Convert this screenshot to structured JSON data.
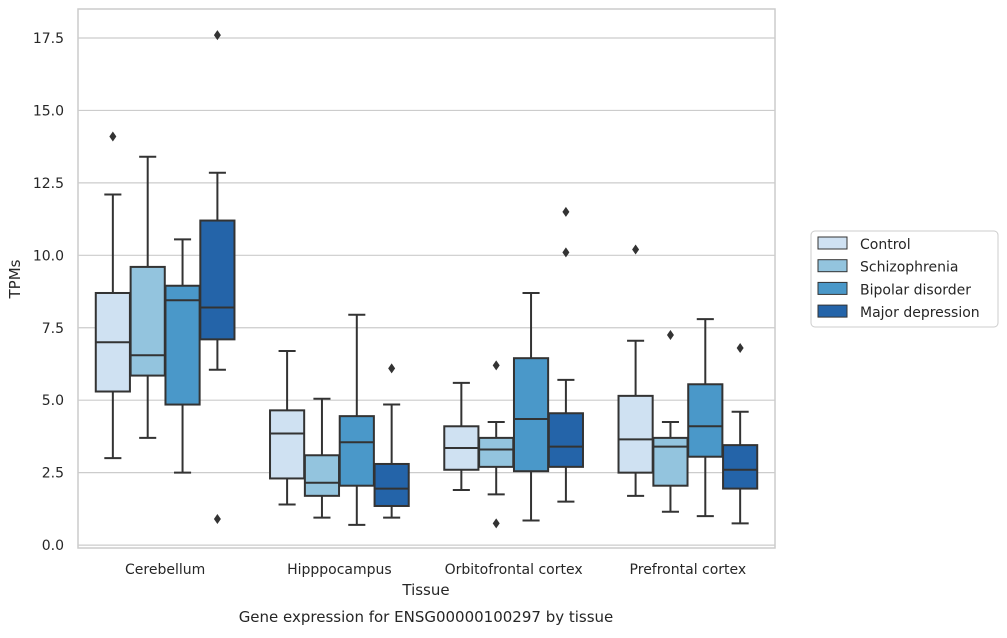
{
  "chart_data": {
    "type": "boxplot",
    "title": "",
    "caption": "Gene expression for ENSG00000100297 by tissue",
    "xlabel": "Tissue",
    "ylabel": "TPMs",
    "ylim": [
      -0.1,
      18.5
    ],
    "yticks": [
      0.0,
      2.5,
      5.0,
      7.5,
      10.0,
      12.5,
      15.0,
      17.5
    ],
    "ytick_labels": [
      "0.0",
      "2.5",
      "5.0",
      "7.5",
      "10.0",
      "12.5",
      "15.0",
      "17.5"
    ],
    "grid": "horizontal",
    "legend_position": "right",
    "categories": [
      "Cerebellum",
      "Hipppocampus",
      "Orbitofrontal cortex",
      "Prefrontal cortex"
    ],
    "series": [
      {
        "name": "Control",
        "color": "#cfe1f2",
        "boxes": [
          {
            "whisker_low": 3.0,
            "q1": 5.3,
            "median": 7.0,
            "q3": 8.7,
            "whisker_high": 12.1,
            "outliers": [
              14.1
            ]
          },
          {
            "whisker_low": 1.4,
            "q1": 2.3,
            "median": 3.85,
            "q3": 4.65,
            "whisker_high": 6.7,
            "outliers": []
          },
          {
            "whisker_low": 1.9,
            "q1": 2.6,
            "median": 3.35,
            "q3": 4.1,
            "whisker_high": 5.6,
            "outliers": []
          },
          {
            "whisker_low": 1.7,
            "q1": 2.5,
            "median": 3.65,
            "q3": 5.15,
            "whisker_high": 7.05,
            "outliers": [
              10.2
            ]
          }
        ]
      },
      {
        "name": "Schizophrenia",
        "color": "#93c4de",
        "boxes": [
          {
            "whisker_low": 3.7,
            "q1": 5.85,
            "median": 6.55,
            "q3": 9.6,
            "whisker_high": 13.4,
            "outliers": []
          },
          {
            "whisker_low": 0.95,
            "q1": 1.7,
            "median": 2.15,
            "q3": 3.1,
            "whisker_high": 5.05,
            "outliers": []
          },
          {
            "whisker_low": 1.75,
            "q1": 2.7,
            "median": 3.3,
            "q3": 3.7,
            "whisker_high": 4.25,
            "outliers": [
              0.75,
              6.2
            ]
          },
          {
            "whisker_low": 1.15,
            "q1": 2.05,
            "median": 3.4,
            "q3": 3.7,
            "whisker_high": 4.25,
            "outliers": [
              7.25
            ]
          }
        ]
      },
      {
        "name": "Bipolar disorder",
        "color": "#4a98c9",
        "boxes": [
          {
            "whisker_low": 2.5,
            "q1": 4.85,
            "median": 8.45,
            "q3": 8.95,
            "whisker_high": 10.55,
            "outliers": []
          },
          {
            "whisker_low": 0.7,
            "q1": 2.05,
            "median": 3.55,
            "q3": 4.45,
            "whisker_high": 7.95,
            "outliers": []
          },
          {
            "whisker_low": 0.85,
            "q1": 2.55,
            "median": 4.35,
            "q3": 6.45,
            "whisker_high": 8.7,
            "outliers": []
          },
          {
            "whisker_low": 1.0,
            "q1": 3.05,
            "median": 4.1,
            "q3": 5.55,
            "whisker_high": 7.8,
            "outliers": []
          }
        ]
      },
      {
        "name": "Major depression",
        "color": "#2464a9",
        "boxes": [
          {
            "whisker_low": 6.05,
            "q1": 7.1,
            "median": 8.2,
            "q3": 11.2,
            "whisker_high": 12.85,
            "outliers": [
              0.9,
              17.6
            ]
          },
          {
            "whisker_low": 0.95,
            "q1": 1.35,
            "median": 1.95,
            "q3": 2.8,
            "whisker_high": 4.85,
            "outliers": [
              6.1
            ]
          },
          {
            "whisker_low": 1.5,
            "q1": 2.7,
            "median": 3.4,
            "q3": 4.55,
            "whisker_high": 5.7,
            "outliers": [
              10.1,
              11.5
            ]
          },
          {
            "whisker_low": 0.75,
            "q1": 1.95,
            "median": 2.6,
            "q3": 3.45,
            "whisker_high": 4.6,
            "outliers": [
              6.8
            ]
          }
        ]
      }
    ]
  }
}
